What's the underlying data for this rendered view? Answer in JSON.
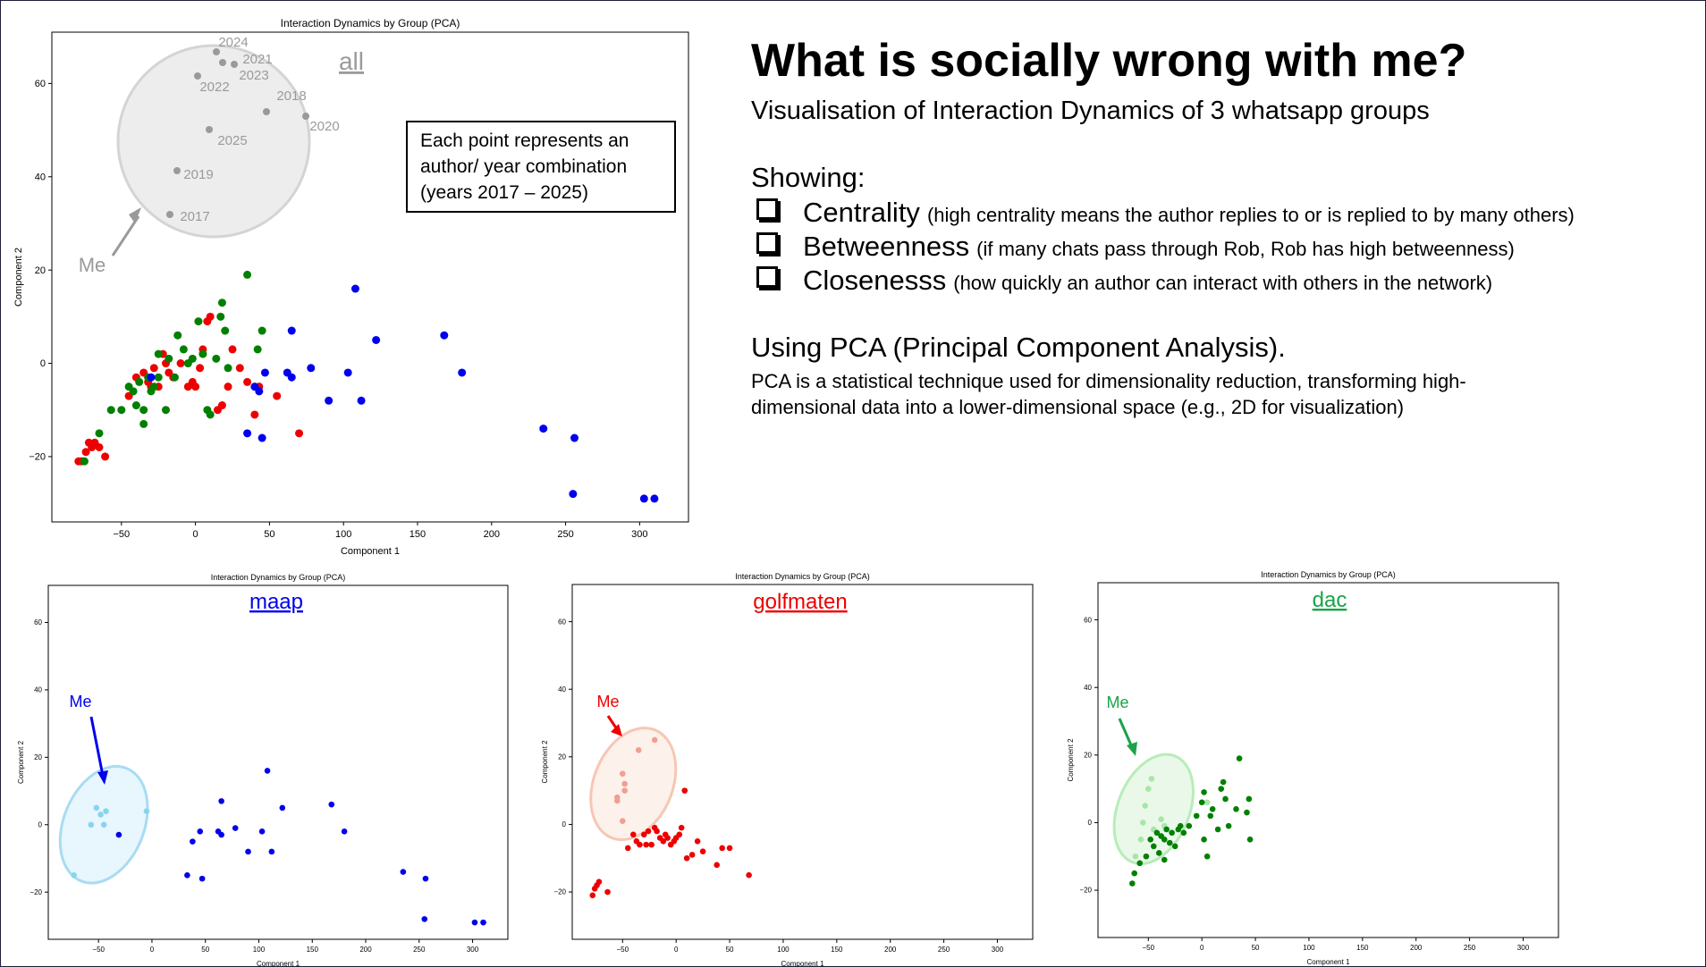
{
  "header": {
    "title": "What is socially wrong with me?",
    "subtitle": "Visualisation of Interaction Dynamics of 3 whatsapp groups",
    "showing_label": "Showing:",
    "metrics": [
      {
        "name": "Centrality",
        "desc": "(high centrality means the author replies to or is replied to by many others)"
      },
      {
        "name": "Betweenness",
        "desc": "(if many chats pass through Rob, Rob has high betweenness)"
      },
      {
        "name": "Closenesss",
        "desc": "(how quickly an author can interact with others in the network)"
      }
    ],
    "pca_title": "Using PCA (Principal Component Analysis).",
    "pca_desc": "PCA is a statistical technique used for dimensionality reduction, transforming high-dimensional data into a lower-dimensional space (e.g., 2D for visualization)"
  },
  "colors": {
    "maap": "#0000ee",
    "golfmaten": "#ee0000",
    "dac": "#008000",
    "grey": "#9a9a9a"
  },
  "chart_data": [
    {
      "id": "all",
      "type": "scatter",
      "title": "Interaction Dynamics by Group (PCA)",
      "xlabel": "Component 1",
      "ylabel": "Component 2",
      "xlim": [
        -97,
        333
      ],
      "ylim": [
        -34,
        71
      ],
      "xticks": [
        -50,
        0,
        50,
        100,
        150,
        200,
        250,
        300
      ],
      "yticks": [
        -20,
        0,
        20,
        40,
        60
      ],
      "label": "all",
      "series": [
        {
          "color": "#ee0000",
          "points": [
            [
              -79,
              -21
            ],
            [
              -77,
              -21
            ],
            [
              -74,
              -19
            ],
            [
              -72,
              -17
            ],
            [
              -70,
              -18
            ],
            [
              -68,
              -17
            ],
            [
              -65,
              -18
            ],
            [
              -61,
              -20
            ],
            [
              -45,
              -7
            ],
            [
              -40,
              -3
            ],
            [
              -35,
              -2
            ],
            [
              -32,
              -4
            ],
            [
              -30,
              -5
            ],
            [
              -28,
              -1
            ],
            [
              -25,
              -5
            ],
            [
              -22,
              2
            ],
            [
              -20,
              0
            ],
            [
              -18,
              -2
            ],
            [
              -15,
              -3
            ],
            [
              -10,
              0
            ],
            [
              -5,
              -5
            ],
            [
              -2,
              -4
            ],
            [
              0,
              -5
            ],
            [
              3,
              -1
            ],
            [
              5,
              3
            ],
            [
              8,
              9
            ],
            [
              10,
              10
            ],
            [
              15,
              -10
            ],
            [
              18,
              -9
            ],
            [
              22,
              -5
            ],
            [
              25,
              3
            ],
            [
              30,
              -1
            ],
            [
              35,
              -4
            ],
            [
              40,
              -11
            ],
            [
              43,
              -5
            ],
            [
              55,
              -7
            ],
            [
              70,
              -15
            ]
          ]
        },
        {
          "color": "#008000",
          "points": [
            [
              -75,
              -21
            ],
            [
              -65,
              -15
            ],
            [
              -57,
              -10
            ],
            [
              -50,
              -10
            ],
            [
              -45,
              -5
            ],
            [
              -42,
              -6
            ],
            [
              -40,
              -9
            ],
            [
              -38,
              -4
            ],
            [
              -35,
              -10
            ],
            [
              -35,
              -13
            ],
            [
              -32,
              -3
            ],
            [
              -30,
              -6
            ],
            [
              -28,
              -5
            ],
            [
              -25,
              -3
            ],
            [
              -25,
              2
            ],
            [
              -20,
              -10
            ],
            [
              -18,
              1
            ],
            [
              -14,
              -3
            ],
            [
              -12,
              6
            ],
            [
              -8,
              3
            ],
            [
              -5,
              0
            ],
            [
              -2,
              1
            ],
            [
              2,
              9
            ],
            [
              5,
              2
            ],
            [
              8,
              -10
            ],
            [
              10,
              -11
            ],
            [
              14,
              1
            ],
            [
              17,
              10
            ],
            [
              18,
              13
            ],
            [
              20,
              7
            ],
            [
              22,
              -1
            ],
            [
              35,
              19
            ],
            [
              42,
              3
            ],
            [
              45,
              7
            ]
          ]
        },
        {
          "color": "#0000ee",
          "points": [
            [
              -30,
              -3
            ],
            [
              35,
              -15
            ],
            [
              40,
              -5
            ],
            [
              43,
              -6
            ],
            [
              45,
              -16
            ],
            [
              47,
              -2
            ],
            [
              62,
              -2
            ],
            [
              65,
              -3
            ],
            [
              65,
              7
            ],
            [
              78,
              -1
            ],
            [
              90,
              -8
            ],
            [
              103,
              -2
            ],
            [
              108,
              16
            ],
            [
              112,
              -8
            ],
            [
              122,
              5
            ],
            [
              168,
              6
            ],
            [
              180,
              -2
            ],
            [
              235,
              -14
            ],
            [
              255,
              -28
            ],
            [
              256,
              -16
            ],
            [
              303,
              -29
            ],
            [
              310,
              -29
            ]
          ]
        }
      ],
      "zoom_labels": [
        "2024",
        "2021",
        "2023",
        "2022",
        "2018",
        "2020",
        "2025",
        "2019",
        "2017"
      ],
      "annotation_me": "Me",
      "textbox": [
        "Each point represents an",
        "author/ year combination",
        "(years 2017 – 2025)"
      ]
    },
    {
      "id": "maap",
      "type": "scatter",
      "title": "Interaction Dynamics by Group (PCA)",
      "xlabel": "Component 1",
      "ylabel": "Component 2",
      "xlim": [
        -97,
        333
      ],
      "ylim": [
        -34,
        71
      ],
      "xticks": [
        -50,
        0,
        50,
        100,
        150,
        200,
        250,
        300
      ],
      "yticks": [
        -20,
        0,
        20,
        40,
        60
      ],
      "label": "maap",
      "annotation_me": "Me",
      "series": [
        {
          "color": "#88d4f0",
          "points": [
            [
              -73,
              -15
            ],
            [
              -57,
              0
            ],
            [
              -52,
              5
            ],
            [
              -48,
              3
            ],
            [
              -43,
              4
            ],
            [
              -45,
              0
            ],
            [
              -5,
              4
            ]
          ]
        },
        {
          "color": "#0000ee",
          "points": [
            [
              -31,
              -3
            ],
            [
              33,
              -15
            ],
            [
              38,
              -5
            ],
            [
              45,
              -2
            ],
            [
              47,
              -16
            ],
            [
              62,
              -2
            ],
            [
              65,
              -3
            ],
            [
              65,
              7
            ],
            [
              78,
              -1
            ],
            [
              90,
              -8
            ],
            [
              103,
              -2
            ],
            [
              108,
              16
            ],
            [
              112,
              -8
            ],
            [
              122,
              5
            ],
            [
              168,
              6
            ],
            [
              180,
              -2
            ],
            [
              235,
              -14
            ],
            [
              255,
              -28
            ],
            [
              256,
              -16
            ],
            [
              302,
              -29
            ],
            [
              310,
              -29
            ]
          ]
        }
      ]
    },
    {
      "id": "golfmaten",
      "type": "scatter",
      "title": "Interaction Dynamics by Group (PCA)",
      "xlabel": "Component 1",
      "ylabel": "Component 2",
      "xlim": [
        -97,
        333
      ],
      "ylim": [
        -34,
        71
      ],
      "xticks": [
        -50,
        0,
        50,
        100,
        150,
        200,
        250,
        300
      ],
      "yticks": [
        -20,
        0,
        20,
        40,
        60
      ],
      "label": "golfmaten",
      "annotation_me": "Me",
      "series": [
        {
          "color": "#f0a090",
          "points": [
            [
              -55,
              8
            ],
            [
              -55,
              7
            ],
            [
              -50,
              15
            ],
            [
              -48,
              12
            ],
            [
              -48,
              10
            ],
            [
              -35,
              22
            ],
            [
              -20,
              25
            ],
            [
              -50,
              1
            ]
          ]
        },
        {
          "color": "#ee0000",
          "points": [
            [
              -78,
              -21
            ],
            [
              -76,
              -19
            ],
            [
              -74,
              -18
            ],
            [
              -72,
              -17
            ],
            [
              -64,
              -20
            ],
            [
              -45,
              -7
            ],
            [
              -40,
              -3
            ],
            [
              -37,
              -5
            ],
            [
              -34,
              -6
            ],
            [
              -30,
              -3
            ],
            [
              -28,
              -6
            ],
            [
              -26,
              -2
            ],
            [
              -23,
              -6
            ],
            [
              -20,
              -1
            ],
            [
              -18,
              -2
            ],
            [
              -15,
              -4
            ],
            [
              -12,
              -5
            ],
            [
              -8,
              -4
            ],
            [
              -5,
              -6
            ],
            [
              -2,
              -5
            ],
            [
              0,
              -4
            ],
            [
              3,
              -3
            ],
            [
              5,
              -1
            ],
            [
              8,
              10
            ],
            [
              10,
              -10
            ],
            [
              15,
              -9
            ],
            [
              20,
              -5
            ],
            [
              25,
              -8
            ],
            [
              38,
              -12
            ],
            [
              43,
              -7
            ],
            [
              50,
              -7
            ],
            [
              68,
              -15
            ],
            [
              -10,
              -3
            ]
          ]
        }
      ]
    },
    {
      "id": "dac",
      "type": "scatter",
      "title": "Interaction Dynamics by Group (PCA)",
      "xlabel": "Component 1",
      "ylabel": "Component 2",
      "xlim": [
        -97,
        333
      ],
      "ylim": [
        -34,
        71
      ],
      "xticks": [
        -50,
        0,
        50,
        100,
        150,
        200,
        250,
        300
      ],
      "yticks": [
        -20,
        0,
        20,
        40,
        60
      ],
      "label": "dac",
      "annotation_me": "Me",
      "series": [
        {
          "color": "#a8e6a8",
          "points": [
            [
              -62,
              -10
            ],
            [
              -57,
              -5
            ],
            [
              -55,
              0
            ],
            [
              -53,
              5
            ],
            [
              -50,
              10
            ],
            [
              -47,
              13
            ],
            [
              -45,
              -2
            ],
            [
              -38,
              1
            ],
            [
              -35,
              -1
            ],
            [
              5,
              6
            ]
          ]
        },
        {
          "color": "#008000",
          "points": [
            [
              -65,
              -18
            ],
            [
              -63,
              -15
            ],
            [
              -58,
              -12
            ],
            [
              -52,
              -10
            ],
            [
              -48,
              -5
            ],
            [
              -45,
              -7
            ],
            [
              -42,
              -3
            ],
            [
              -40,
              -9
            ],
            [
              -38,
              -4
            ],
            [
              -35,
              -5
            ],
            [
              -35,
              -11
            ],
            [
              -33,
              -2
            ],
            [
              -30,
              -6
            ],
            [
              -28,
              -3
            ],
            [
              -25,
              -7
            ],
            [
              -22,
              -2
            ],
            [
              -20,
              -1
            ],
            [
              -17,
              -3
            ],
            [
              -12,
              -1
            ],
            [
              -5,
              2
            ],
            [
              0,
              6
            ],
            [
              2,
              9
            ],
            [
              5,
              -10
            ],
            [
              8,
              2
            ],
            [
              10,
              4
            ],
            [
              15,
              -2
            ],
            [
              18,
              10
            ],
            [
              20,
              12
            ],
            [
              22,
              7
            ],
            [
              25,
              -1
            ],
            [
              32,
              4
            ],
            [
              35,
              19
            ],
            [
              42,
              3
            ],
            [
              44,
              7
            ],
            [
              45,
              -5
            ],
            [
              2,
              -5
            ]
          ]
        }
      ]
    }
  ]
}
